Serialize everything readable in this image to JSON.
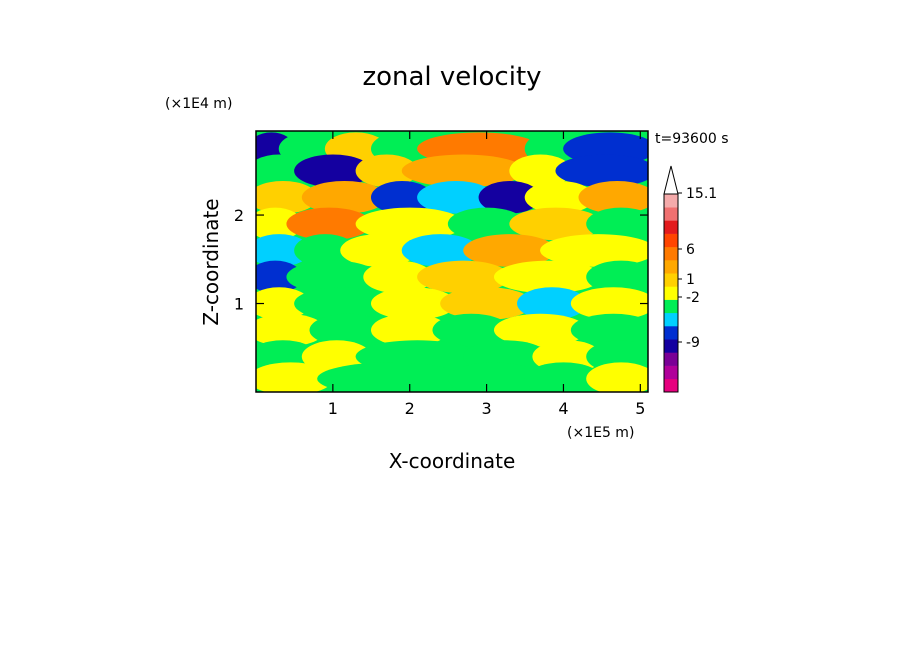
{
  "chart_data": {
    "type": "heatmap",
    "title": "zonal velocity",
    "xlabel": "X-coordinate",
    "ylabel": "Z-coordinate",
    "x_unit_label": "(×1E5 m)",
    "y_unit_label": "(×1E4 m)",
    "time_label": "t=93600 s",
    "x_ticks": [
      "1",
      "2",
      "3",
      "4",
      "5"
    ],
    "x_tick_values": [
      1,
      2,
      3,
      4,
      5
    ],
    "y_ticks": [
      "1",
      "2"
    ],
    "y_tick_values": [
      1,
      2
    ],
    "xlim": [
      0,
      5.1
    ],
    "ylim": [
      0,
      2.95
    ],
    "colorbar": {
      "labels": [
        "15.1",
        "6",
        "1",
        "-2",
        "-9"
      ],
      "colors": [
        "#e6007e",
        "#b0009a",
        "#7a0096",
        "#1400a0",
        "#002fd0",
        "#00d0ff",
        "#00ee55",
        "#ffff00",
        "#ffd000",
        "#ffa800",
        "#ff7a00",
        "#ff4500",
        "#e31a1c",
        "#f07070",
        "#f4aaaa"
      ]
    },
    "bands": [
      {
        "z": 2.75,
        "segments": [
          [
            0.0,
            0.4,
            -7
          ],
          [
            0.4,
            1.0,
            0
          ],
          [
            1.0,
            1.6,
            2
          ],
          [
            1.6,
            2.2,
            0
          ],
          [
            2.2,
            3.6,
            4
          ],
          [
            3.6,
            4.1,
            0
          ],
          [
            4.1,
            5.1,
            -5
          ]
        ]
      },
      {
        "z": 2.5,
        "segments": [
          [
            0.0,
            0.6,
            0
          ],
          [
            0.6,
            1.4,
            -6
          ],
          [
            1.4,
            2.0,
            2
          ],
          [
            2.0,
            3.4,
            3
          ],
          [
            3.4,
            4.0,
            1
          ],
          [
            4.0,
            5.1,
            -4
          ]
        ]
      },
      {
        "z": 2.2,
        "segments": [
          [
            0.0,
            0.7,
            2
          ],
          [
            0.7,
            1.6,
            3
          ],
          [
            1.6,
            2.2,
            -5
          ],
          [
            2.2,
            3.0,
            -2
          ],
          [
            3.0,
            3.6,
            -6
          ],
          [
            3.6,
            4.3,
            1
          ],
          [
            4.3,
            5.1,
            3
          ]
        ]
      },
      {
        "z": 1.9,
        "segments": [
          [
            0.0,
            0.5,
            1
          ],
          [
            0.5,
            1.4,
            4
          ],
          [
            1.4,
            2.6,
            1
          ],
          [
            2.6,
            3.4,
            0
          ],
          [
            3.4,
            4.4,
            2
          ],
          [
            4.4,
            5.1,
            0
          ]
        ]
      },
      {
        "z": 1.6,
        "segments": [
          [
            0.0,
            0.6,
            -1
          ],
          [
            0.6,
            1.2,
            0
          ],
          [
            1.2,
            2.0,
            1
          ],
          [
            2.0,
            2.8,
            -2
          ],
          [
            2.8,
            3.8,
            3
          ],
          [
            3.8,
            5.1,
            1
          ]
        ]
      },
      {
        "z": 1.3,
        "segments": [
          [
            0.0,
            0.5,
            -5
          ],
          [
            0.5,
            1.5,
            0
          ],
          [
            1.5,
            2.2,
            1
          ],
          [
            2.2,
            3.2,
            2
          ],
          [
            3.2,
            4.4,
            1
          ],
          [
            4.4,
            5.1,
            0
          ]
        ]
      },
      {
        "z": 1.0,
        "segments": [
          [
            0.0,
            0.6,
            1
          ],
          [
            0.6,
            1.6,
            0
          ],
          [
            1.6,
            2.5,
            1
          ],
          [
            2.5,
            3.5,
            2
          ],
          [
            3.5,
            4.2,
            -2
          ],
          [
            4.2,
            5.1,
            1
          ]
        ]
      },
      {
        "z": 0.7,
        "segments": [
          [
            0.0,
            0.8,
            1
          ],
          [
            0.8,
            1.6,
            0
          ],
          [
            1.6,
            2.4,
            1
          ],
          [
            2.4,
            3.2,
            0
          ],
          [
            3.2,
            4.2,
            1
          ],
          [
            4.2,
            5.1,
            0
          ]
        ]
      },
      {
        "z": 0.4,
        "segments": [
          [
            0.0,
            0.7,
            0
          ],
          [
            0.7,
            1.4,
            1
          ],
          [
            1.4,
            2.8,
            0
          ],
          [
            2.8,
            3.7,
            0
          ],
          [
            3.7,
            4.4,
            1
          ],
          [
            4.4,
            5.1,
            0
          ]
        ]
      },
      {
        "z": 0.15,
        "segments": [
          [
            0.0,
            0.9,
            1
          ],
          [
            0.9,
            2.6,
            0
          ],
          [
            2.6,
            3.6,
            0
          ],
          [
            3.6,
            4.4,
            0
          ],
          [
            4.4,
            5.1,
            1
          ]
        ]
      }
    ]
  }
}
